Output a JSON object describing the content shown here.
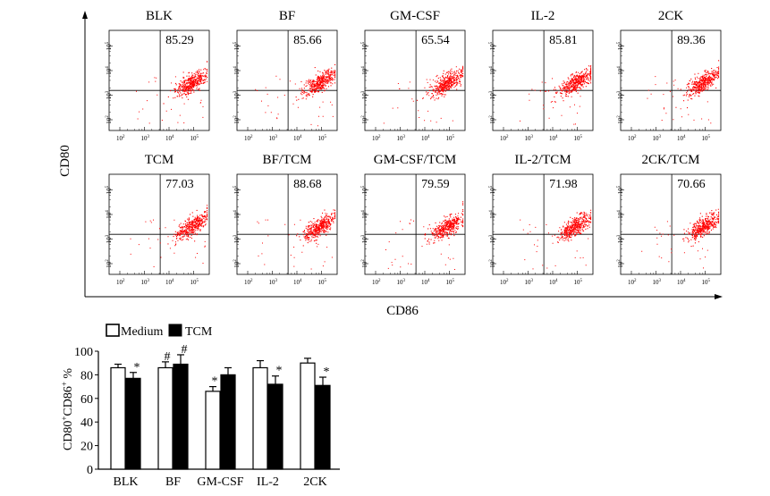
{
  "flow_panel": {
    "x_axis_label": "CD86",
    "y_axis_label": "CD80",
    "tick_labels": [
      "10",
      "2",
      "10",
      "3",
      "10",
      "4",
      "10",
      "5"
    ],
    "tick_labels_joined": [
      "10²",
      "10³",
      "10⁴",
      "10⁵"
    ],
    "dot_color": "#ff0000"
  },
  "chart_data": [
    {
      "type": "scatter",
      "description_of_panels": "flow cytometry dot plots, CD86 (x, log) vs CD80 (y, log), percentage of CD80+CD86+ shown top-right",
      "xlabel": "CD86",
      "ylabel": "CD80",
      "x_scale": "log",
      "y_scale": "log",
      "x_ticks": [
        "10²",
        "10³",
        "10⁴",
        "10⁵"
      ],
      "y_ticks": [
        "10²",
        "10³",
        "10⁴",
        "10⁵"
      ],
      "panels": [
        {
          "title": "BLK",
          "value": "85.29"
        },
        {
          "title": "BF",
          "value": "85.66"
        },
        {
          "title": "GM-CSF",
          "value": "65.54"
        },
        {
          "title": "IL-2",
          "value": "85.81"
        },
        {
          "title": "2CK",
          "value": "89.36"
        },
        {
          "title": "TCM",
          "value": "77.03"
        },
        {
          "title": "BF/TCM",
          "value": "88.68"
        },
        {
          "title": "GM-CSF/TCM",
          "value": "79.59"
        },
        {
          "title": "IL-2/TCM",
          "value": "71.98"
        },
        {
          "title": "2CK/TCM",
          "value": "70.66"
        }
      ],
      "colors": {
        "dots": "#ff0000",
        "gate_lines": "#000000"
      }
    },
    {
      "type": "bar",
      "categories": [
        "BLK",
        "BF",
        "GM-CSF",
        "IL-2",
        "2CK"
      ],
      "series": [
        {
          "name": "Medium",
          "values": [
            86,
            86,
            66,
            86,
            90
          ],
          "errors": [
            3,
            5,
            4,
            6,
            4
          ],
          "fill": "#ffffff",
          "significance": [
            "",
            "#",
            "*",
            "",
            ""
          ]
        },
        {
          "name": "TCM",
          "values": [
            77,
            89,
            80,
            72,
            71
          ],
          "errors": [
            5,
            8,
            6,
            7,
            7
          ],
          "fill": "#000000",
          "significance": [
            "*",
            "#",
            "",
            "*",
            "*"
          ]
        }
      ],
      "ylabel": "CD80⁺CD86⁺ %",
      "ylabel_parts": {
        "a": "CD80",
        "sup1": "+",
        "b": "CD86",
        "sup2": "+",
        "c": " %"
      },
      "yticks": [
        "0",
        "20",
        "40",
        "60",
        "80",
        "100"
      ],
      "ylim": [
        0,
        100
      ],
      "legend": [
        "Medium",
        "TCM"
      ],
      "legend_position": "top-left"
    }
  ]
}
